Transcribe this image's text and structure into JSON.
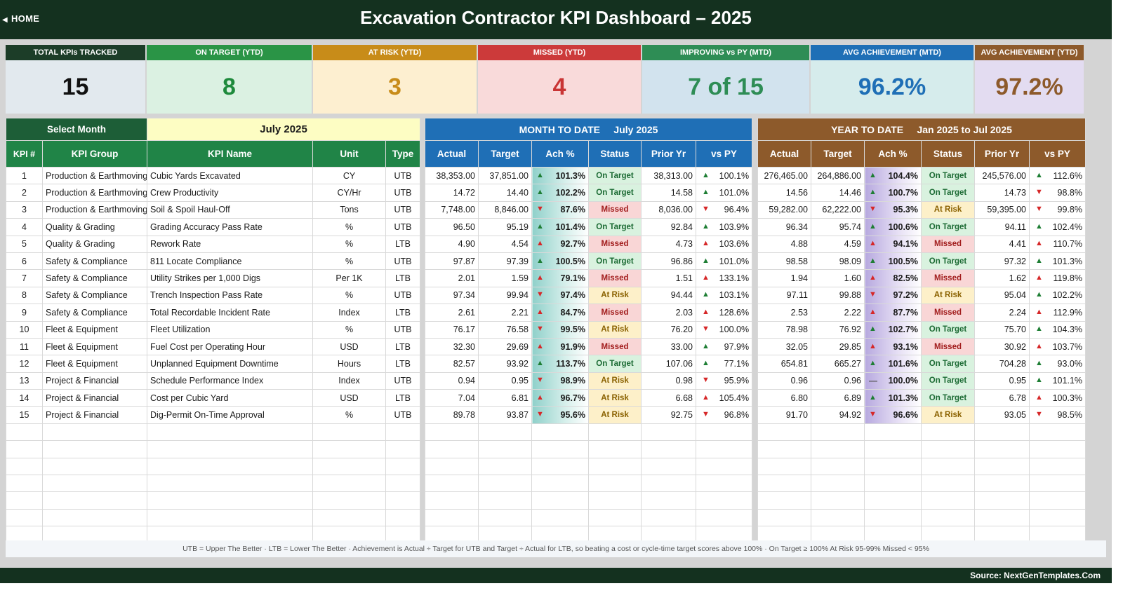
{
  "header": {
    "home_label": "HOME",
    "title": "Excavation Contractor KPI Dashboard   –   2025"
  },
  "cards": [
    {
      "label": "TOTAL KPIs TRACKED",
      "value": "15",
      "head_color": "#1c3d28",
      "bg": "#e2e9ee",
      "fg": "#111111"
    },
    {
      "label": "ON TARGET (YTD)",
      "value": "8",
      "head_color": "#2a9446",
      "bg": "#dbf1e2",
      "fg": "#1e8a3c"
    },
    {
      "label": "AT RISK (YTD)",
      "value": "3",
      "head_color": "#c88c19",
      "bg": "#fdefd0",
      "fg": "#c88c19"
    },
    {
      "label": "MISSED (YTD)",
      "value": "4",
      "head_color": "#cc3a3a",
      "bg": "#f9dada",
      "fg": "#c93434"
    },
    {
      "label": "IMPROVING vs PY (MTD)",
      "value": "7 of 15",
      "head_color": "#2e8d55",
      "bg": "#d2e3ee",
      "fg": "#2e8d55"
    },
    {
      "label": "AVG ACHIEVEMENT (MTD)",
      "value": "96.2%",
      "head_color": "#1f6fb6",
      "bg": "#d6ecec",
      "fg": "#1f6fb6"
    },
    {
      "label": "AVG ACHIEVEMENT (YTD)",
      "value": "97.2%",
      "head_color": "#8d5a2b",
      "bg": "#e3dcf1",
      "fg": "#8d5a2b"
    }
  ],
  "left": {
    "select_label": "Select Month",
    "selected_month": "July 2025",
    "columns": [
      "KPI #",
      "KPI Group",
      "KPI Name",
      "Unit",
      "Type"
    ]
  },
  "mtd": {
    "band_label": "MONTH TO DATE",
    "band_period": "July 2025",
    "columns": [
      "Actual",
      "Target",
      "Ach %",
      "Status",
      "Prior Yr",
      "vs PY"
    ]
  },
  "ytd": {
    "band_label": "YEAR TO DATE",
    "band_period": "Jan 2025  to  Jul 2025",
    "columns": [
      "Actual",
      "Target",
      "Ach %",
      "Status",
      "Prior Yr",
      "vs PY"
    ]
  },
  "rows": [
    {
      "n": "1",
      "group": "Production & Earthmoving",
      "name": "Cubic Yards Excavated",
      "unit": "CY",
      "type": "UTB",
      "m": {
        "actual": "38,353.00",
        "target": "37,851.00",
        "ach_dir": "up",
        "ach": "101.3%",
        "status": "On Target",
        "prior": "38,313.00",
        "py_dir": "up",
        "vs": "100.1%"
      },
      "y": {
        "actual": "276,465.00",
        "target": "264,886.00",
        "ach_dir": "up",
        "ach": "104.4%",
        "status": "On Target",
        "prior": "245,576.00",
        "py_dir": "up",
        "vs": "112.6%"
      }
    },
    {
      "n": "2",
      "group": "Production & Earthmoving",
      "name": "Crew Productivity",
      "unit": "CY/Hr",
      "type": "UTB",
      "m": {
        "actual": "14.72",
        "target": "14.40",
        "ach_dir": "up",
        "ach": "102.2%",
        "status": "On Target",
        "prior": "14.58",
        "py_dir": "up",
        "vs": "101.0%"
      },
      "y": {
        "actual": "14.56",
        "target": "14.46",
        "ach_dir": "up",
        "ach": "100.7%",
        "status": "On Target",
        "prior": "14.73",
        "py_dir": "down",
        "vs": "98.8%"
      }
    },
    {
      "n": "3",
      "group": "Production & Earthmoving",
      "name": "Soil & Spoil Haul-Off",
      "unit": "Tons",
      "type": "UTB",
      "m": {
        "actual": "7,748.00",
        "target": "8,846.00",
        "ach_dir": "down",
        "ach": "87.6%",
        "status": "Missed",
        "prior": "8,036.00",
        "py_dir": "down",
        "vs": "96.4%"
      },
      "y": {
        "actual": "59,282.00",
        "target": "62,222.00",
        "ach_dir": "down",
        "ach": "95.3%",
        "status": "At Risk",
        "prior": "59,395.00",
        "py_dir": "down",
        "vs": "99.8%"
      }
    },
    {
      "n": "4",
      "group": "Quality & Grading",
      "name": "Grading Accuracy Pass Rate",
      "unit": "%",
      "type": "UTB",
      "m": {
        "actual": "96.50",
        "target": "95.19",
        "ach_dir": "up",
        "ach": "101.4%",
        "status": "On Target",
        "prior": "92.84",
        "py_dir": "up",
        "vs": "103.9%"
      },
      "y": {
        "actual": "96.34",
        "target": "95.74",
        "ach_dir": "up",
        "ach": "100.6%",
        "status": "On Target",
        "prior": "94.11",
        "py_dir": "up",
        "vs": "102.4%"
      }
    },
    {
      "n": "5",
      "group": "Quality & Grading",
      "name": "Rework Rate",
      "unit": "%",
      "type": "LTB",
      "m": {
        "actual": "4.90",
        "target": "4.54",
        "ach_dir": "upb",
        "ach": "92.7%",
        "status": "Missed",
        "prior": "4.73",
        "py_dir": "upb",
        "vs": "103.6%"
      },
      "y": {
        "actual": "4.88",
        "target": "4.59",
        "ach_dir": "upb",
        "ach": "94.1%",
        "status": "Missed",
        "prior": "4.41",
        "py_dir": "upb",
        "vs": "110.7%"
      }
    },
    {
      "n": "6",
      "group": "Safety & Compliance",
      "name": "811 Locate Compliance",
      "unit": "%",
      "type": "UTB",
      "m": {
        "actual": "97.87",
        "target": "97.39",
        "ach_dir": "up",
        "ach": "100.5%",
        "status": "On Target",
        "prior": "96.86",
        "py_dir": "up",
        "vs": "101.0%"
      },
      "y": {
        "actual": "98.58",
        "target": "98.09",
        "ach_dir": "up",
        "ach": "100.5%",
        "status": "On Target",
        "prior": "97.32",
        "py_dir": "up",
        "vs": "101.3%"
      }
    },
    {
      "n": "7",
      "group": "Safety & Compliance",
      "name": "Utility Strikes per 1,000 Digs",
      "unit": "Per 1K",
      "type": "LTB",
      "m": {
        "actual": "2.01",
        "target": "1.59",
        "ach_dir": "upb",
        "ach": "79.1%",
        "status": "Missed",
        "prior": "1.51",
        "py_dir": "upb",
        "vs": "133.1%"
      },
      "y": {
        "actual": "1.94",
        "target": "1.60",
        "ach_dir": "upb",
        "ach": "82.5%",
        "status": "Missed",
        "prior": "1.62",
        "py_dir": "upb",
        "vs": "119.8%"
      }
    },
    {
      "n": "8",
      "group": "Safety & Compliance",
      "name": "Trench Inspection Pass Rate",
      "unit": "%",
      "type": "UTB",
      "m": {
        "actual": "97.34",
        "target": "99.94",
        "ach_dir": "down",
        "ach": "97.4%",
        "status": "At Risk",
        "prior": "94.44",
        "py_dir": "up",
        "vs": "103.1%"
      },
      "y": {
        "actual": "97.11",
        "target": "99.88",
        "ach_dir": "down",
        "ach": "97.2%",
        "status": "At Risk",
        "prior": "95.04",
        "py_dir": "up",
        "vs": "102.2%"
      }
    },
    {
      "n": "9",
      "group": "Safety & Compliance",
      "name": "Total Recordable Incident Rate",
      "unit": "Index",
      "type": "LTB",
      "m": {
        "actual": "2.61",
        "target": "2.21",
        "ach_dir": "upb",
        "ach": "84.7%",
        "status": "Missed",
        "prior": "2.03",
        "py_dir": "upb",
        "vs": "128.6%"
      },
      "y": {
        "actual": "2.53",
        "target": "2.22",
        "ach_dir": "upb",
        "ach": "87.7%",
        "status": "Missed",
        "prior": "2.24",
        "py_dir": "upb",
        "vs": "112.9%"
      }
    },
    {
      "n": "10",
      "group": "Fleet & Equipment",
      "name": "Fleet Utilization",
      "unit": "%",
      "type": "UTB",
      "m": {
        "actual": "76.17",
        "target": "76.58",
        "ach_dir": "down",
        "ach": "99.5%",
        "status": "At Risk",
        "prior": "76.20",
        "py_dir": "down",
        "vs": "100.0%"
      },
      "y": {
        "actual": "78.98",
        "target": "76.92",
        "ach_dir": "up",
        "ach": "102.7%",
        "status": "On Target",
        "prior": "75.70",
        "py_dir": "up",
        "vs": "104.3%"
      }
    },
    {
      "n": "11",
      "group": "Fleet & Equipment",
      "name": "Fuel Cost per Operating Hour",
      "unit": "USD",
      "type": "LTB",
      "m": {
        "actual": "32.30",
        "target": "29.69",
        "ach_dir": "upb",
        "ach": "91.9%",
        "status": "Missed",
        "prior": "33.00",
        "py_dir": "up",
        "vs": "97.9%"
      },
      "y": {
        "actual": "32.05",
        "target": "29.85",
        "ach_dir": "upb",
        "ach": "93.1%",
        "status": "Missed",
        "prior": "30.92",
        "py_dir": "upb",
        "vs": "103.7%"
      }
    },
    {
      "n": "12",
      "group": "Fleet & Equipment",
      "name": "Unplanned Equipment Downtime",
      "unit": "Hours",
      "type": "LTB",
      "m": {
        "actual": "82.57",
        "target": "93.92",
        "ach_dir": "up",
        "ach": "113.7%",
        "status": "On Target",
        "prior": "107.06",
        "py_dir": "up",
        "vs": "77.1%"
      },
      "y": {
        "actual": "654.81",
        "target": "665.27",
        "ach_dir": "up",
        "ach": "101.6%",
        "status": "On Target",
        "prior": "704.28",
        "py_dir": "up",
        "vs": "93.0%"
      }
    },
    {
      "n": "13",
      "group": "Project & Financial",
      "name": "Schedule Performance Index",
      "unit": "Index",
      "type": "UTB",
      "m": {
        "actual": "0.94",
        "target": "0.95",
        "ach_dir": "down",
        "ach": "98.9%",
        "status": "At Risk",
        "prior": "0.98",
        "py_dir": "down",
        "vs": "95.9%"
      },
      "y": {
        "actual": "0.96",
        "target": "0.96",
        "ach_dir": "flat",
        "ach": "100.0%",
        "status": "On Target",
        "prior": "0.95",
        "py_dir": "up",
        "vs": "101.1%"
      }
    },
    {
      "n": "14",
      "group": "Project & Financial",
      "name": "Cost per Cubic Yard",
      "unit": "USD",
      "type": "LTB",
      "m": {
        "actual": "7.04",
        "target": "6.81",
        "ach_dir": "upb",
        "ach": "96.7%",
        "status": "At Risk",
        "prior": "6.68",
        "py_dir": "upb",
        "vs": "105.4%"
      },
      "y": {
        "actual": "6.80",
        "target": "6.89",
        "ach_dir": "up",
        "ach": "101.3%",
        "status": "On Target",
        "prior": "6.78",
        "py_dir": "upb",
        "vs": "100.3%"
      }
    },
    {
      "n": "15",
      "group": "Project & Financial",
      "name": "Dig-Permit On-Time Approval",
      "unit": "%",
      "type": "UTB",
      "m": {
        "actual": "89.78",
        "target": "93.87",
        "ach_dir": "down",
        "ach": "95.6%",
        "status": "At Risk",
        "prior": "92.75",
        "py_dir": "down",
        "vs": "96.8%"
      },
      "y": {
        "actual": "91.70",
        "target": "94.92",
        "ach_dir": "down",
        "ach": "96.6%",
        "status": "At Risk",
        "prior": "93.05",
        "py_dir": "down",
        "vs": "98.5%"
      }
    }
  ],
  "empty_rows": 7,
  "legend": "UTB = Upper The Better   ·   LTB = Lower The Better   ·   Achievement is Actual ÷ Target for UTB and Target ÷ Actual for LTB, so beating a cost or cycle-time target scores above 100%   ·   On Target ≥ 100%   At Risk 95-99%   Missed < 95%",
  "source": "Source: NextGenTemplates.Com"
}
